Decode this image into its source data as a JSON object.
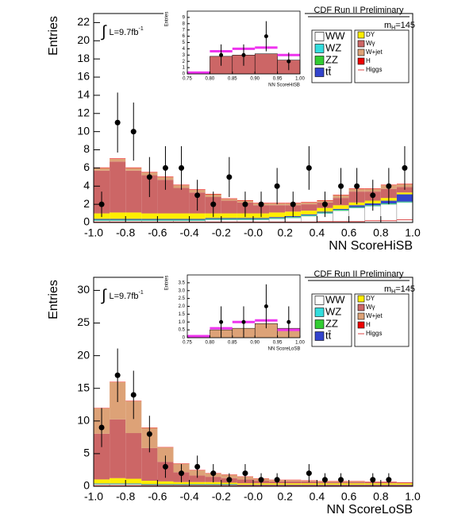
{
  "chart_data": [
    {
      "type": "stacked-histogram",
      "title": "CDF Run II Preliminary",
      "mass_label": [
        "m",
        "H",
        "=145"
      ],
      "lumi": [
        "∫",
        "L=9.7fb",
        "-1"
      ],
      "x_label": "NN ScoreHiSB",
      "y_label": "Entries",
      "bins": [
        -1,
        -0.9,
        -0.8,
        -0.7,
        -0.6,
        -0.5,
        -0.4,
        -0.3,
        -0.2,
        -0.1,
        0,
        0.1,
        0.2,
        0.3,
        0.4,
        0.5,
        0.6,
        0.7,
        0.8,
        0.9,
        1
      ],
      "xlim": [
        -1,
        1
      ],
      "xticks": [
        {
          "value": -1,
          "label": "-1.0"
        },
        -0.8,
        -0.6,
        -0.4,
        -0.2,
        {
          "value": 0,
          "label": "-0.0"
        },
        0.2,
        0.4,
        0.6,
        0.8,
        {
          "value": 1,
          "label": "1.0"
        }
      ],
      "ylim": [
        0,
        23
      ],
      "yticks": [
        0,
        2,
        4,
        6,
        8,
        10,
        12,
        14,
        16,
        18,
        20,
        22
      ],
      "series": [
        {
          "name": "WW",
          "color": "#ffffff",
          "values": [
            0.2,
            0.2,
            0.2,
            0.2,
            0.2,
            0.2,
            0.2,
            0.3,
            0.3,
            0.3,
            0.3,
            0.4,
            0.5,
            0.7,
            1.0,
            1.3,
            1.6,
            1.8,
            2.0,
            2.2
          ]
        },
        {
          "name": "WZ",
          "color": "#33dddd",
          "values": [
            0.05,
            0.05,
            0.05,
            0.05,
            0.05,
            0.05,
            0.05,
            0.05,
            0.05,
            0.05,
            0.05,
            0.05,
            0.05,
            0.05,
            0.05,
            0.05,
            0.05,
            0.05,
            0.05,
            0.05
          ]
        },
        {
          "name": "ZZ",
          "color": "#33cc33",
          "values": [
            0.05,
            0.05,
            0.05,
            0.05,
            0.05,
            0.05,
            0.05,
            0.05,
            0.05,
            0.05,
            0.05,
            0.05,
            0.05,
            0.05,
            0.05,
            0.05,
            0.05,
            0.05,
            0.05,
            0.05
          ]
        },
        {
          "name": "tt̄",
          "color": "#3344cc",
          "values": [
            0.1,
            0.1,
            0.1,
            0.1,
            0.1,
            0.1,
            0.1,
            0.1,
            0.1,
            0.1,
            0.1,
            0.1,
            0.1,
            0.1,
            0.1,
            0.1,
            0.2,
            0.2,
            0.3,
            0.8
          ]
        },
        {
          "name": "DY",
          "color": "#ffee00",
          "values": [
            0.6,
            0.7,
            0.7,
            0.6,
            0.6,
            0.6,
            0.6,
            0.5,
            0.5,
            0.5,
            0.5,
            0.5,
            0.5,
            0.4,
            0.4,
            0.4,
            0.3,
            0.3,
            0.3,
            0.2
          ]
        },
        {
          "name": "Wγ",
          "color": "#cc6666",
          "values": [
            4.7,
            5.6,
            4.6,
            4.2,
            3.7,
            2.8,
            2.3,
            1.8,
            1.4,
            1.2,
            0.9,
            0.8,
            0.7,
            0.7,
            0.6,
            0.8,
            1.2,
            1.0,
            1.0,
            0.6
          ]
        },
        {
          "name": "W+jet",
          "color": "#dda277",
          "values": [
            0.3,
            0.3,
            0.3,
            0.3,
            0.3,
            0.3,
            0.3,
            0.3,
            0.2,
            0.2,
            0.2,
            0.2,
            0.2,
            0.2,
            0.2,
            0.3,
            0.3,
            0.3,
            0.4,
            0.3
          ]
        },
        {
          "name": "H",
          "color": "#ee0000",
          "values": [
            0.05,
            0.05,
            0.05,
            0.05,
            0.05,
            0.05,
            0.05,
            0.05,
            0.05,
            0.05,
            0.05,
            0.05,
            0.05,
            0.05,
            0.05,
            0.05,
            0.05,
            0.05,
            0.05,
            0.05
          ]
        }
      ],
      "signal": {
        "name": "Higgs",
        "color": "#dd4444",
        "values": [
          0.05,
          0.05,
          0.05,
          0.05,
          0.05,
          0.05,
          0.05,
          0.05,
          0.05,
          0.05,
          0.05,
          0.05,
          0.05,
          0.05,
          0.1,
          0.1,
          0.1,
          0.2,
          0.2,
          0.3
        ]
      },
      "data": {
        "values": [
          2,
          11,
          10,
          5,
          6,
          6,
          3,
          2,
          5,
          2,
          2,
          4,
          2,
          6,
          2,
          4,
          4,
          3,
          4,
          6
        ],
        "errors": [
          1.4,
          3.3,
          3.2,
          2.2,
          2.4,
          2.4,
          1.7,
          1.4,
          2.2,
          1.4,
          1.4,
          2,
          1.4,
          2.4,
          1.4,
          2,
          2,
          1.7,
          2,
          2.4
        ]
      },
      "inset": {
        "x_label": "NN ScoreHiSB",
        "y_label": "Entries",
        "bins": [
          0.75,
          0.8,
          0.85,
          0.9,
          0.95,
          1
        ],
        "xlim": [
          0.75,
          1
        ],
        "xticks": [
          0.75,
          {
            "value": 0.8,
            "label": "0.80"
          },
          0.85,
          {
            "value": 0.9,
            "label": "0.90"
          },
          0.95,
          {
            "value": 1,
            "label": "1.00"
          }
        ],
        "ylim": [
          0,
          10
        ],
        "yticks": [
          0,
          1,
          2,
          3,
          4,
          5,
          6,
          7,
          8,
          9
        ],
        "values": [
          0.2,
          2.8,
          3,
          3.2,
          2.2
        ],
        "color": "#cc6666",
        "signal_values": [
          0.2,
          3.6,
          4,
          4.2,
          3
        ],
        "signal_color": "#ee33ee",
        "data": {
          "values": [
            null,
            3,
            3,
            6,
            2
          ],
          "errors": [
            null,
            1.7,
            1.7,
            2.4,
            1.4
          ]
        }
      }
    },
    {
      "type": "stacked-histogram",
      "title": "CDF Run II Preliminary",
      "mass_label": [
        "m",
        "H",
        "=145"
      ],
      "lumi": [
        "∫",
        "L=9.7fb",
        "-1"
      ],
      "x_label": "NN ScoreLoSB",
      "y_label": "Entries",
      "bins": [
        -1,
        -0.9,
        -0.8,
        -0.7,
        -0.6,
        -0.5,
        -0.4,
        -0.3,
        -0.2,
        -0.1,
        0,
        0.1,
        0.2,
        0.3,
        0.4,
        0.5,
        0.6,
        0.7,
        0.8,
        0.9,
        1
      ],
      "xlim": [
        -1,
        1
      ],
      "xticks": [
        {
          "value": -1,
          "label": "-1.0"
        },
        -0.8,
        -0.6,
        -0.4,
        -0.2,
        {
          "value": 0,
          "label": "-0.0"
        },
        0.2,
        0.4,
        0.6,
        0.8,
        {
          "value": 1,
          "label": "1.0"
        }
      ],
      "ylim": [
        0,
        32
      ],
      "yticks": [
        0,
        5,
        10,
        15,
        20,
        25,
        30
      ],
      "series": [
        {
          "name": "WW",
          "color": "#ffffff",
          "values": [
            0.3,
            0.3,
            0.3,
            0.2,
            0.2,
            0.2,
            0.2,
            0.2,
            0.2,
            0.1,
            0.1,
            0.1,
            0.1,
            0.1,
            0.1,
            0.1,
            0.1,
            0.1,
            0.1,
            0.1
          ]
        },
        {
          "name": "WZ",
          "color": "#33dddd",
          "values": [
            0.05,
            0.05,
            0.05,
            0.05,
            0.05,
            0.05,
            0.05,
            0.05,
            0.05,
            0.05,
            0.05,
            0.05,
            0.05,
            0.05,
            0.05,
            0.05,
            0.05,
            0.05,
            0.05,
            0.05
          ]
        },
        {
          "name": "ZZ",
          "color": "#33cc33",
          "values": [
            0.05,
            0.05,
            0.05,
            0.05,
            0.05,
            0.05,
            0.05,
            0.05,
            0.05,
            0.05,
            0.05,
            0.05,
            0.05,
            0.05,
            0.05,
            0.05,
            0.05,
            0.05,
            0.05,
            0.05
          ]
        },
        {
          "name": "tt̄",
          "color": "#3344cc",
          "values": [
            0.05,
            0.05,
            0.05,
            0.05,
            0.05,
            0.05,
            0.05,
            0.05,
            0.05,
            0.05,
            0.05,
            0.05,
            0.05,
            0.05,
            0.05,
            0.05,
            0.05,
            0.05,
            0.05,
            0.05
          ]
        },
        {
          "name": "DY",
          "color": "#ffee00",
          "values": [
            0.6,
            0.8,
            0.7,
            0.5,
            0.4,
            0.3,
            0.3,
            0.3,
            0.2,
            0.2,
            0.2,
            0.2,
            0.2,
            0.2,
            0.2,
            0.2,
            0.2,
            0.2,
            0.2,
            0.2
          ]
        },
        {
          "name": "Wγ",
          "color": "#cc6666",
          "values": [
            7,
            9,
            7,
            5,
            3,
            1.5,
            1,
            0.8,
            0.7,
            0.6,
            0.4,
            0.3,
            0.3,
            0.3,
            0.2,
            0.2,
            0.2,
            0.2,
            0.2,
            0.1
          ]
        },
        {
          "name": "W+jet",
          "color": "#dda277",
          "values": [
            3.9,
            5.7,
            4.9,
            3.1,
            2.2,
            1.3,
            0.8,
            0.5,
            0.5,
            0.4,
            0.3,
            0.2,
            0.2,
            0.1,
            0.1,
            0.1,
            0.1,
            0,
            0,
            0
          ]
        },
        {
          "name": "H",
          "color": "#ee0000",
          "values": [
            0.05,
            0.05,
            0.05,
            0.05,
            0.05,
            0.05,
            0.05,
            0.05,
            0.05,
            0.05,
            0.05,
            0.05,
            0.05,
            0.05,
            0.05,
            0.05,
            0.05,
            0.05,
            0.05,
            0.05
          ]
        }
      ],
      "signal": {
        "name": "Higgs",
        "color": "#dd4444",
        "values": [
          0.1,
          0.1,
          0.1,
          0.1,
          0.1,
          0.1,
          0.1,
          0.1,
          0.1,
          0.1,
          0.1,
          0.1,
          0.1,
          0.1,
          0.1,
          0.1,
          0.1,
          0.1,
          0.1,
          0.1
        ]
      },
      "data": {
        "values": [
          9,
          17,
          14,
          8,
          3,
          2,
          3,
          2,
          1,
          2,
          1,
          1,
          null,
          2,
          1,
          1,
          null,
          1,
          1,
          null
        ],
        "errors": [
          3,
          4.1,
          3.7,
          2.8,
          1.7,
          1.4,
          1.7,
          1.4,
          1,
          1.4,
          1,
          1,
          null,
          1.4,
          1,
          1,
          null,
          1,
          1,
          null
        ]
      },
      "inset": {
        "x_label": "NN ScoreLoSB",
        "y_label": "Entries",
        "bins": [
          0.75,
          0.8,
          0.85,
          0.9,
          0.95,
          1
        ],
        "xlim": [
          0.75,
          1
        ],
        "xticks": [
          0.75,
          {
            "value": 0.8,
            "label": "0.80"
          },
          0.85,
          {
            "value": 0.9,
            "label": "0.90"
          },
          0.95,
          {
            "value": 1,
            "label": "1.00"
          }
        ],
        "ylim": [
          0,
          4
        ],
        "yticks": [
          0,
          0.5,
          {
            "value": 1,
            "label": "1.0"
          },
          1.5,
          {
            "value": 2,
            "label": "2.0"
          },
          2.5,
          {
            "value": 3,
            "label": "3.0"
          },
          3.5
        ],
        "values": [
          0.1,
          0.5,
          0.6,
          0.9,
          0.6
        ],
        "color": "#dda277",
        "signal_values": [
          0.1,
          0.6,
          1,
          1.1,
          0.5
        ],
        "signal_color": "#ee33ee",
        "data": {
          "values": [
            null,
            1,
            1,
            2,
            1
          ],
          "errors": [
            null,
            1,
            1,
            1.4,
            1
          ]
        }
      }
    }
  ]
}
